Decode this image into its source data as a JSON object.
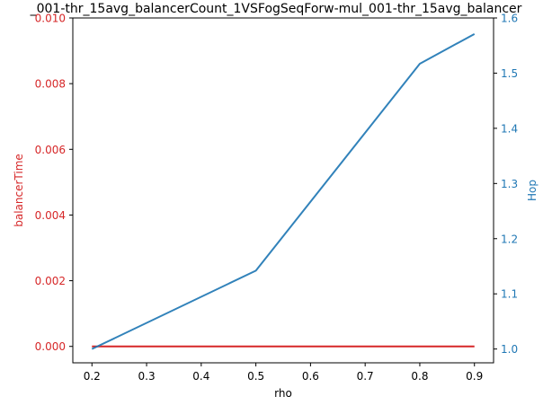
{
  "chart_data": {
    "type": "line",
    "title": "_001-thr_15avg_balancerCount_1VSFogSeqForw-mul_001-thr_15avg_balancer",
    "xlabel": "rho",
    "ylabel_left": "balancerTime",
    "ylabel_right": "Hop",
    "xlim": [
      0.165,
      0.935
    ],
    "ylim_left": [
      -0.0005,
      0.01
    ],
    "ylim_right": [
      0.975,
      1.6
    ],
    "x_ticks": [
      "0.2",
      "0.3",
      "0.4",
      "0.5",
      "0.6",
      "0.7",
      "0.8",
      "0.9"
    ],
    "y_left_ticks": [
      "0.000",
      "0.002",
      "0.004",
      "0.006",
      "0.008",
      "0.010"
    ],
    "y_right_ticks": [
      "1.0",
      "1.1",
      "1.2",
      "1.3",
      "1.4",
      "1.5",
      "1.6"
    ],
    "left_axis_color": "#d62728",
    "right_axis_color": "#1f77b4",
    "grid": false,
    "series": [
      {
        "axis": "left",
        "color": "#d62728",
        "x": [
          0.2,
          0.5,
          0.8,
          0.9
        ],
        "values": [
          0.0,
          0.0,
          0.0,
          0.0
        ]
      },
      {
        "axis": "right",
        "color": "#1f77b4",
        "x": [
          0.2,
          0.5,
          0.8,
          0.9
        ],
        "values": [
          1.0,
          1.142,
          1.517,
          1.571
        ]
      }
    ]
  }
}
